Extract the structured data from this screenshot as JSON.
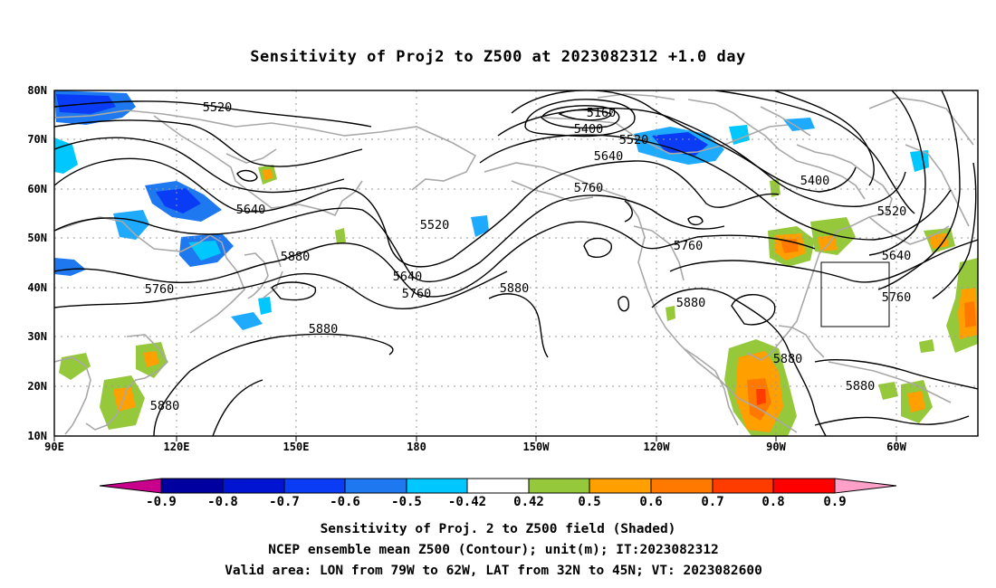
{
  "title": "Sensitivity of Proj2 to Z500 at 2023082312 +1.0 day",
  "map": {
    "lon_labels": [
      "90E",
      "120E",
      "150E",
      "180",
      "150W",
      "120W",
      "90W",
      "60W"
    ],
    "lat_labels": [
      "80N",
      "70N",
      "60N",
      "50N",
      "40N",
      "30N",
      "20N",
      "10N"
    ],
    "contour_labels": [
      "5520",
      "5160",
      "5400",
      "5520",
      "5640",
      "5760",
      "5520",
      "5640",
      "5880",
      "5640",
      "5760",
      "5760",
      "5880",
      "5880",
      "5400",
      "5520",
      "5640",
      "5760",
      "5880",
      "5880",
      "5880",
      "5880",
      "5760"
    ],
    "contour_line_color": "#000000",
    "coastline_color": "#a8a8a8",
    "grid_color": "#999999"
  },
  "colorbar": {
    "tick_labels": [
      "-0.9",
      "-0.8",
      "-0.7",
      "-0.6",
      "-0.5",
      "-0.42",
      "0.42",
      "0.5",
      "0.6",
      "0.7",
      "0.8",
      "0.9"
    ],
    "colors": [
      "#c8008c",
      "#0000a0",
      "#0014d2",
      "#0a3cf5",
      "#1e78f0",
      "#1eaaff",
      "#00c8ff",
      "#ffffff",
      "#96c83c",
      "#ffa000",
      "#ff7800",
      "#ff3c00",
      "#ff0000",
      "#ffa0c8"
    ]
  },
  "captions": [
    "Sensitivity of Proj. 2 to Z500 field (Shaded)",
    "NCEP ensemble mean Z500 (Contour); unit(m); IT:2023082312",
    "Valid area: LON from 79W to 62W, LAT from 32N to 45N; VT: 2023082600"
  ]
}
